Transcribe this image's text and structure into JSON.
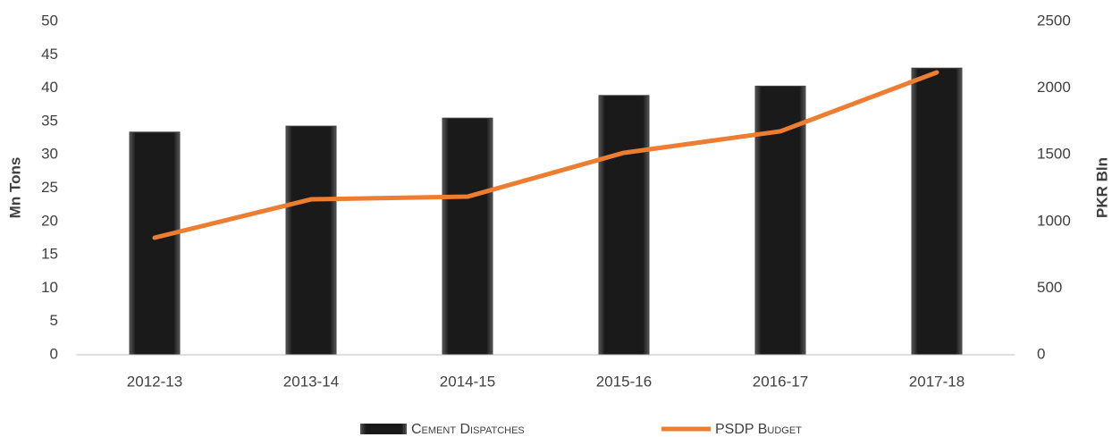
{
  "chart_data": {
    "type": "bar_line",
    "categories": [
      "2012-13",
      "2013-14",
      "2014-15",
      "2015-16",
      "2016-17",
      "2017-18"
    ],
    "series": [
      {
        "name": "Cement Dispatches",
        "type": "bar",
        "color": "#1a1a1a",
        "axis": "y",
        "values": [
          33.4,
          34.3,
          35.5,
          38.9,
          40.3,
          43.0
        ]
      },
      {
        "name": "PSDP Budget",
        "type": "line",
        "color": "#ed7d31",
        "axis": "y2",
        "values": [
          878,
          1166,
          1186,
          1515,
          1676,
          2118
        ]
      }
    ],
    "ylabel": "Mn Tons",
    "y2label": "PKR Bln",
    "ylim": [
      0,
      50
    ],
    "yticks": [
      0,
      5,
      10,
      15,
      20,
      25,
      30,
      35,
      40,
      45,
      50
    ],
    "y2lim": [
      0,
      2500
    ],
    "y2ticks": [
      0,
      500,
      1000,
      1500,
      2000,
      2500
    ],
    "grid": false,
    "legend": "bottom"
  }
}
